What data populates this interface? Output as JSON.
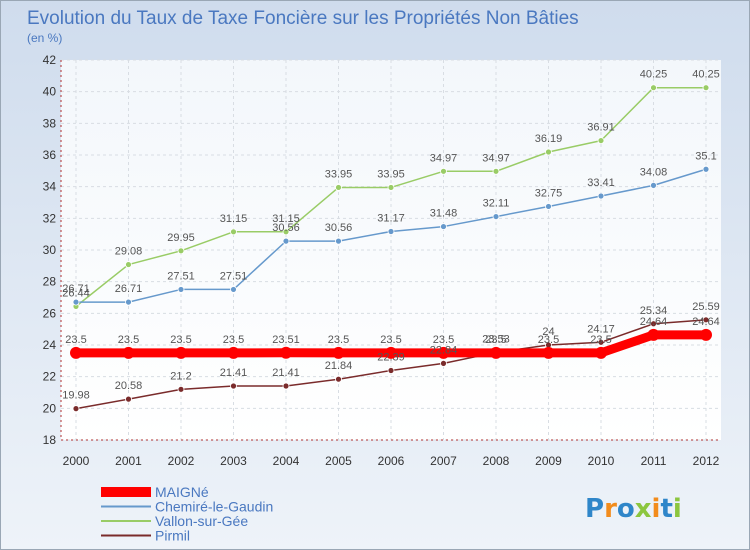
{
  "chart_data": {
    "type": "line",
    "title": "Evolution du Taux de Taxe Foncière sur les Propriétés Non Bâties",
    "unit_label": "(en %)",
    "xlabel": "",
    "ylabel": "",
    "ylim": [
      18,
      42
    ],
    "yticks": [
      18,
      20,
      22,
      24,
      26,
      28,
      30,
      32,
      34,
      36,
      38,
      40,
      42
    ],
    "categories": [
      "2000",
      "2001",
      "2002",
      "2003",
      "2004",
      "2005",
      "2006",
      "2007",
      "2008",
      "2009",
      "2010",
      "2011",
      "2012"
    ],
    "series": [
      {
        "name": "MAIGNé",
        "color": "#ff0000",
        "values": [
          23.5,
          23.5,
          23.5,
          23.5,
          23.51,
          23.5,
          23.5,
          23.5,
          23.5,
          23.5,
          23.5,
          24.64,
          24.64
        ],
        "labels": [
          "23.5",
          "23.5",
          "23.5",
          "23.5",
          "23.51",
          "23.5",
          "23.5",
          "23.5",
          "23.5",
          "23.5",
          "23.5",
          "24.64",
          "24.64"
        ]
      },
      {
        "name": "Chemiré-le-Gaudin",
        "color": "#6699cc",
        "values": [
          26.71,
          26.71,
          27.51,
          27.51,
          30.56,
          30.56,
          31.17,
          31.48,
          32.11,
          32.75,
          33.41,
          34.08,
          35.1
        ],
        "labels": [
          "26.71",
          "26.71",
          "27.51",
          "27.51",
          "30.56",
          "30.56",
          "31.17",
          "31.48",
          "32.11",
          "32.75",
          "33.41",
          "34.08",
          "35.1"
        ]
      },
      {
        "name": "Vallon-sur-Gée",
        "color": "#99cc66",
        "values": [
          26.44,
          29.08,
          29.95,
          31.15,
          31.15,
          33.95,
          33.95,
          34.97,
          34.97,
          36.19,
          36.91,
          40.25,
          40.25
        ],
        "labels": [
          "26.44",
          "29.08",
          "29.95",
          "31.15",
          "31.15",
          "33.95",
          "33.95",
          "34.97",
          "34.97",
          "36.19",
          "36.91",
          "40.25",
          "40.25"
        ]
      },
      {
        "name": "Pirmil",
        "color": "#7a2b2b",
        "values": [
          19.98,
          20.58,
          21.2,
          21.41,
          21.41,
          21.84,
          22.39,
          22.84,
          23.53,
          24.0,
          24.17,
          25.34,
          25.59
        ],
        "labels": [
          "19.98",
          "20.58",
          "21.2",
          "21.41",
          "21.41",
          "21.84",
          "22.39",
          "22.84",
          "23.53",
          "24",
          "24.17",
          "25.34",
          "25.59"
        ]
      }
    ],
    "legend_position": "bottom-left"
  },
  "watermark": "Proxiti"
}
